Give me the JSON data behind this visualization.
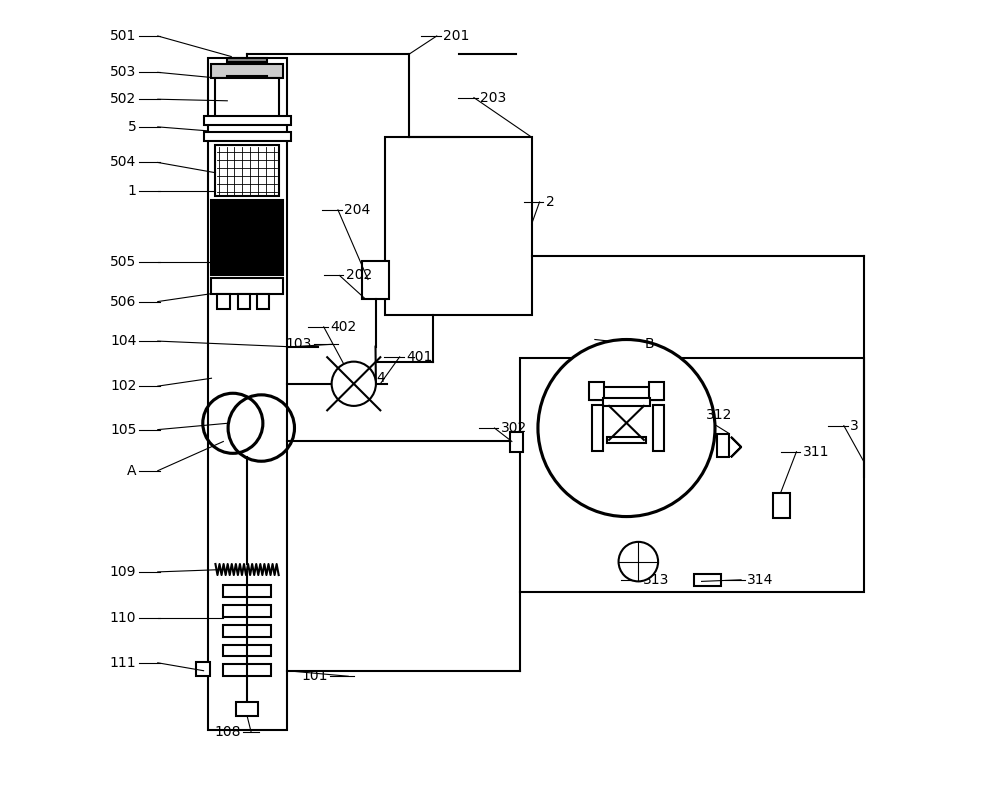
{
  "bg_color": "#ffffff",
  "line_color": "#000000",
  "line_width": 1.5,
  "thin_line": 0.8,
  "label_fontsize": 10,
  "figsize": [
    10.0,
    7.96
  ],
  "dpi": 100
}
